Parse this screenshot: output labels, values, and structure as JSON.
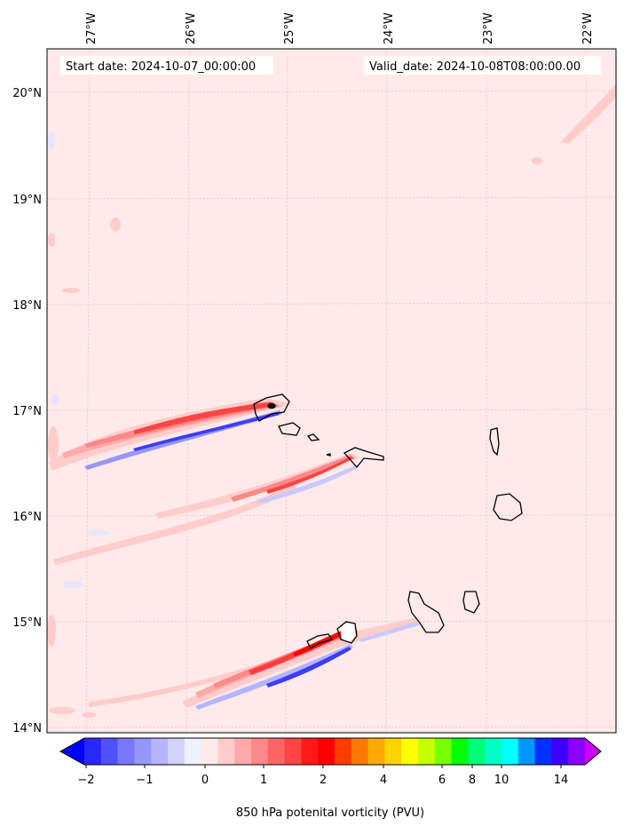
{
  "map": {
    "start_label": "Start date: 2024-10-07_00:00:00",
    "valid_label": "Valid_date: 2024-10-08T08:00:00.00",
    "lon_labels": [
      "27°W",
      "26°W",
      "25°W",
      "24°W",
      "23°W",
      "22°W"
    ],
    "lat_labels": [
      "20°N",
      "19°N",
      "18°N",
      "17°N",
      "16°N",
      "15°N",
      "14°N"
    ],
    "background_color": "#ffe9e9"
  },
  "colorbar": {
    "label": "850 hPa potenital vorticity (PVU)",
    "ticks": [
      "−2",
      "−1",
      "0",
      "1",
      "2",
      "4",
      "6",
      "8",
      "10",
      "14"
    ],
    "colors": [
      "#0000ff",
      "#2828ff",
      "#5050ff",
      "#7878ff",
      "#9696ff",
      "#b4b4ff",
      "#d2d2ff",
      "#f0f0ff",
      "#ffeaea",
      "#ffcccc",
      "#ffaaaa",
      "#ff8888",
      "#ff6666",
      "#ff4444",
      "#ff1a1a",
      "#ff0000",
      "#ff3c00",
      "#ff7800",
      "#ffaa00",
      "#ffd200",
      "#ffff00",
      "#c8ff00",
      "#78ff00",
      "#00ff00",
      "#00ff78",
      "#00ffc8",
      "#00ffff",
      "#0096ff",
      "#0032ff",
      "#3c00ff",
      "#8c00ff",
      "#c800ff"
    ]
  }
}
